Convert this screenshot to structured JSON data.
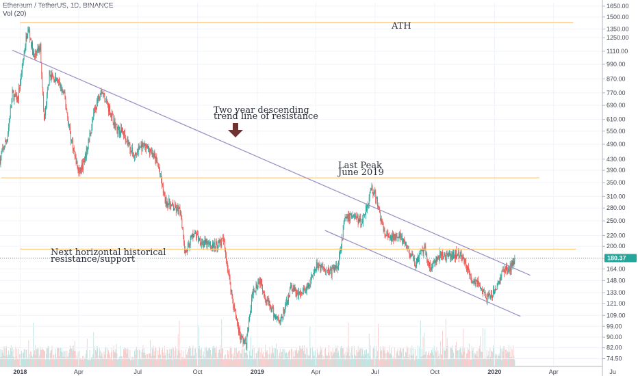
{
  "header": {
    "symbol": "Ethereum / TetherUS, 1D, BINANCE",
    "volume_label": "Vol (20)"
  },
  "colors": {
    "up": "#26a69a",
    "down": "#ef5350",
    "level": "#ffcc80",
    "trend": "#9b92c4",
    "price_line": "#26a69a",
    "arrow": "#6d3232"
  },
  "chart_data": {
    "type": "candlestick",
    "scale": "log",
    "ylim": [
      70,
      1700
    ],
    "xlim": [
      "2017-12-01",
      "2020-06-15"
    ],
    "y_ticks": [
      "1650.00",
      "1500.00",
      "1350.00",
      "1250.00",
      "1110.00",
      "990.00",
      "870.00",
      "770.00",
      "690.00",
      "610.00",
      "550.00",
      "490.00",
      "430.00",
      "390.00",
      "350.00",
      "310.00",
      "280.00",
      "250.00",
      "220.00",
      "200.00",
      "180.00",
      "164.00",
      "148.00",
      "133.00",
      "121.00",
      "109.00",
      "99.00",
      "90.00",
      "82.00",
      "74.50"
    ],
    "x_ticks": [
      {
        "date": "2018-01-01",
        "label": "2018"
      },
      {
        "date": "2018-04-01",
        "label": "Apr"
      },
      {
        "date": "2018-07-01",
        "label": "Jul"
      },
      {
        "date": "2018-10-01",
        "label": "Oct"
      },
      {
        "date": "2019-01-01",
        "label": "2019"
      },
      {
        "date": "2019-04-01",
        "label": "Apr"
      },
      {
        "date": "2019-07-01",
        "label": "Jul"
      },
      {
        "date": "2019-10-01",
        "label": "Oct"
      },
      {
        "date": "2020-01-01",
        "label": "2020"
      },
      {
        "date": "2020-04-01",
        "label": "Apr"
      },
      {
        "date": "2020-07-01",
        "label": "Ju"
      }
    ],
    "price_path": [
      [
        "2017-12-01",
        430
      ],
      [
        "2017-12-12",
        520
      ],
      [
        "2017-12-20",
        760
      ],
      [
        "2017-12-28",
        720
      ],
      [
        "2018-01-05",
        1000
      ],
      [
        "2018-01-13",
        1400
      ],
      [
        "2018-01-22",
        1050
      ],
      [
        "2018-02-01",
        1150
      ],
      [
        "2018-02-07",
        600
      ],
      [
        "2018-02-15",
        900
      ],
      [
        "2018-02-28",
        850
      ],
      [
        "2018-03-10",
        750
      ],
      [
        "2018-03-20",
        520
      ],
      [
        "2018-04-01",
        380
      ],
      [
        "2018-04-10",
        420
      ],
      [
        "2018-04-25",
        650
      ],
      [
        "2018-05-05",
        800
      ],
      [
        "2018-05-15",
        700
      ],
      [
        "2018-05-30",
        560
      ],
      [
        "2018-06-10",
        540
      ],
      [
        "2018-06-25",
        440
      ],
      [
        "2018-07-05",
        480
      ],
      [
        "2018-07-20",
        470
      ],
      [
        "2018-08-01",
        410
      ],
      [
        "2018-08-12",
        300
      ],
      [
        "2018-08-25",
        280
      ],
      [
        "2018-09-05",
        270
      ],
      [
        "2018-09-12",
        190
      ],
      [
        "2018-09-25",
        225
      ],
      [
        "2018-10-10",
        205
      ],
      [
        "2018-10-25",
        200
      ],
      [
        "2018-11-10",
        210
      ],
      [
        "2018-11-15",
        175
      ],
      [
        "2018-11-25",
        120
      ],
      [
        "2018-12-06",
        90
      ],
      [
        "2018-12-15",
        85
      ],
      [
        "2018-12-25",
        135
      ],
      [
        "2019-01-05",
        150
      ],
      [
        "2019-01-15",
        125
      ],
      [
        "2019-01-28",
        108
      ],
      [
        "2019-02-07",
        105
      ],
      [
        "2019-02-22",
        140
      ],
      [
        "2019-03-05",
        130
      ],
      [
        "2019-03-20",
        138
      ],
      [
        "2019-04-03",
        170
      ],
      [
        "2019-04-15",
        165
      ],
      [
        "2019-04-25",
        160
      ],
      [
        "2019-05-05",
        170
      ],
      [
        "2019-05-15",
        250
      ],
      [
        "2019-05-28",
        265
      ],
      [
        "2019-06-10",
        245
      ],
      [
        "2019-06-22",
        305
      ],
      [
        "2019-06-26",
        335
      ],
      [
        "2019-07-05",
        290
      ],
      [
        "2019-07-15",
        225
      ],
      [
        "2019-07-25",
        212
      ],
      [
        "2019-08-05",
        225
      ],
      [
        "2019-08-20",
        195
      ],
      [
        "2019-09-01",
        172
      ],
      [
        "2019-09-15",
        195
      ],
      [
        "2019-09-24",
        165
      ],
      [
        "2019-10-10",
        185
      ],
      [
        "2019-10-25",
        182
      ],
      [
        "2019-11-05",
        188
      ],
      [
        "2019-11-15",
        180
      ],
      [
        "2019-11-25",
        150
      ],
      [
        "2019-12-05",
        148
      ],
      [
        "2019-12-18",
        128
      ],
      [
        "2019-12-25",
        127
      ],
      [
        "2020-01-05",
        140
      ],
      [
        "2020-01-15",
        165
      ],
      [
        "2020-01-24",
        162
      ],
      [
        "2020-02-01",
        182
      ]
    ],
    "current_price": "180.37",
    "horizontal_levels": [
      {
        "price": 1430,
        "from": "2018-01-01",
        "to": "2020-05-01",
        "label": "ATH"
      },
      {
        "price": 365,
        "from": "2017-12-03",
        "to": "2020-03-10",
        "label": "Last Peak June 2019"
      },
      {
        "price": 195,
        "from": "2018-01-01",
        "to": "2020-05-05",
        "label": "Next horizontal historical resistance/support"
      }
    ],
    "trend_lines": [
      {
        "from": [
          "2017-12-20",
          1120
        ],
        "to": [
          "2020-02-25",
          155
        ]
      },
      {
        "from": [
          "2019-04-15",
          230
        ],
        "to": [
          "2020-02-10",
          108
        ]
      }
    ],
    "annotations": {
      "ath": "ATH",
      "descending_line1": "Two year descending",
      "descending_line2": "trend line of resistance",
      "last_peak_line1": "Last Peak",
      "last_peak_line2": "June 2019",
      "support_line1": "Next horizontal historical",
      "support_line2": "resistance/support"
    }
  }
}
